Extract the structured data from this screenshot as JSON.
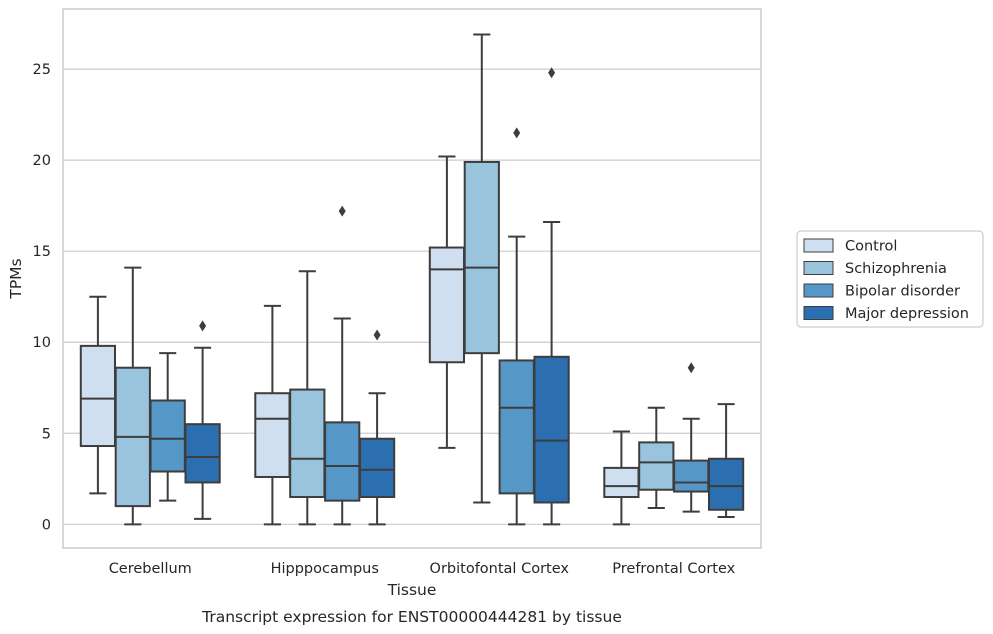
{
  "chart_data": {
    "type": "box",
    "caption": "Transcript expression for ENST00000444281 by tissue",
    "xlabel": "Tissue",
    "ylabel": "TPMs",
    "ylim": [
      -1.3,
      28.3
    ],
    "yticks": [
      0,
      5,
      10,
      15,
      20,
      25
    ],
    "grid": "horizontal",
    "legend_position": "right",
    "categories": [
      "Cerebellum",
      "Hipppocampus",
      "Orbitofontal Cortex",
      "Prefrontal Cortex"
    ],
    "series": [
      {
        "name": "Control",
        "color": "#cfdff0",
        "boxes": [
          {
            "whislo": 1.7,
            "q1": 4.3,
            "med": 6.9,
            "q3": 9.8,
            "whishi": 12.5,
            "fliers": []
          },
          {
            "whislo": 0.0,
            "q1": 2.6,
            "med": 5.8,
            "q3": 7.2,
            "whishi": 12.0,
            "fliers": []
          },
          {
            "whislo": 4.2,
            "q1": 8.9,
            "med": 14.0,
            "q3": 15.2,
            "whishi": 20.2,
            "fliers": []
          },
          {
            "whislo": 0.0,
            "q1": 1.5,
            "med": 2.1,
            "q3": 3.1,
            "whishi": 5.1,
            "fliers": []
          }
        ]
      },
      {
        "name": "Schizophrenia",
        "color": "#9ac4de",
        "boxes": [
          {
            "whislo": 0.0,
            "q1": 1.0,
            "med": 4.8,
            "q3": 8.6,
            "whishi": 14.1,
            "fliers": []
          },
          {
            "whislo": 0.0,
            "q1": 1.5,
            "med": 3.6,
            "q3": 7.4,
            "whishi": 13.9,
            "fliers": []
          },
          {
            "whislo": 1.2,
            "q1": 9.4,
            "med": 14.1,
            "q3": 19.9,
            "whishi": 26.9,
            "fliers": []
          },
          {
            "whislo": 0.9,
            "q1": 1.9,
            "med": 3.4,
            "q3": 4.5,
            "whishi": 6.4,
            "fliers": []
          }
        ]
      },
      {
        "name": "Bipolar disorder",
        "color": "#5597c7",
        "boxes": [
          {
            "whislo": 1.3,
            "q1": 2.9,
            "med": 4.7,
            "q3": 6.8,
            "whishi": 9.4,
            "fliers": []
          },
          {
            "whislo": 0.0,
            "q1": 1.3,
            "med": 3.2,
            "q3": 5.6,
            "whishi": 11.3,
            "fliers": [
              17.2
            ]
          },
          {
            "whislo": 0.0,
            "q1": 1.7,
            "med": 6.4,
            "q3": 9.0,
            "whishi": 15.8,
            "fliers": [
              21.5
            ]
          },
          {
            "whislo": 0.7,
            "q1": 1.8,
            "med": 2.3,
            "q3": 3.5,
            "whishi": 5.8,
            "fliers": [
              8.6
            ]
          }
        ]
      },
      {
        "name": "Major depression",
        "color": "#2c6fb0",
        "boxes": [
          {
            "whislo": 0.3,
            "q1": 2.3,
            "med": 3.7,
            "q3": 5.5,
            "whishi": 9.7,
            "fliers": [
              10.9
            ]
          },
          {
            "whislo": 0.0,
            "q1": 1.5,
            "med": 3.0,
            "q3": 4.7,
            "whishi": 7.2,
            "fliers": [
              10.4
            ]
          },
          {
            "whislo": 0.0,
            "q1": 1.2,
            "med": 4.6,
            "q3": 9.2,
            "whishi": 16.6,
            "fliers": [
              24.8
            ]
          },
          {
            "whislo": 0.4,
            "q1": 0.8,
            "med": 2.1,
            "q3": 3.6,
            "whishi": 6.6,
            "fliers": []
          }
        ]
      }
    ]
  }
}
